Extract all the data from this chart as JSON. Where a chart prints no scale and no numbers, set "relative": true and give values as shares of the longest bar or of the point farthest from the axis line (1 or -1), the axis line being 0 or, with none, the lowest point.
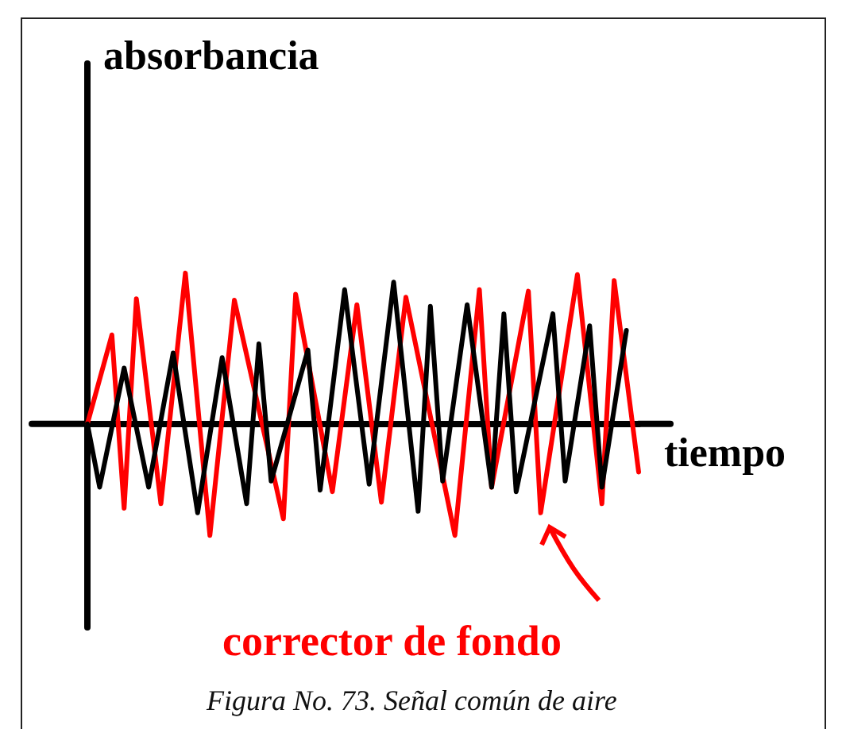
{
  "chart_data": {
    "type": "line",
    "relative": true,
    "xlabel": "tiempo",
    "ylabel": "absorbancia",
    "grid": false,
    "line_style": "solid",
    "categories": [
      null,
      null,
      null,
      null,
      null,
      null,
      null,
      null,
      null,
      null,
      null,
      null,
      null,
      null,
      null,
      null,
      null,
      null,
      null,
      null,
      null,
      null,
      null,
      null,
      null,
      null,
      null,
      null,
      null,
      null,
      null,
      null,
      null,
      null,
      null,
      null,
      null,
      null,
      null,
      null,
      null,
      null,
      null,
      null,
      null,
      null
    ],
    "series": [
      {
        "color": "#ff0000",
        "values": [
          0,
          null,
          0.59,
          -0.56,
          0.83,
          null,
          -0.53,
          null,
          1,
          null,
          -0.74,
          null,
          0.82,
          null,
          null,
          null,
          -0.63,
          0.86,
          null,
          null,
          -0.45,
          null,
          0.79,
          null,
          -0.52,
          null,
          0.84,
          null,
          null,
          null,
          -0.74,
          null,
          0.89,
          -0.42,
          null,
          null,
          0.88,
          -0.59,
          null,
          null,
          0.99,
          null,
          -0.53,
          0.95,
          null,
          -0.32
        ]
      },
      {
        "color": "#000000",
        "values": [
          0,
          -0.42,
          null,
          0.37,
          null,
          -0.42,
          null,
          0.47,
          null,
          -0.59,
          null,
          0.44,
          null,
          -0.53,
          0.53,
          -0.38,
          null,
          null,
          0.49,
          -0.44,
          null,
          0.89,
          null,
          -0.4,
          null,
          0.94,
          null,
          -0.58,
          0.78,
          -0.38,
          null,
          0.79,
          null,
          -0.42,
          0.73,
          -0.45,
          null,
          null,
          0.73,
          -0.38,
          null,
          0.65,
          -0.42,
          null,
          0.62,
          null
        ]
      }
    ],
    "annotations": [
      "corrector de fondo",
      "Figura No. 73. Señal común de aire"
    ]
  }
}
